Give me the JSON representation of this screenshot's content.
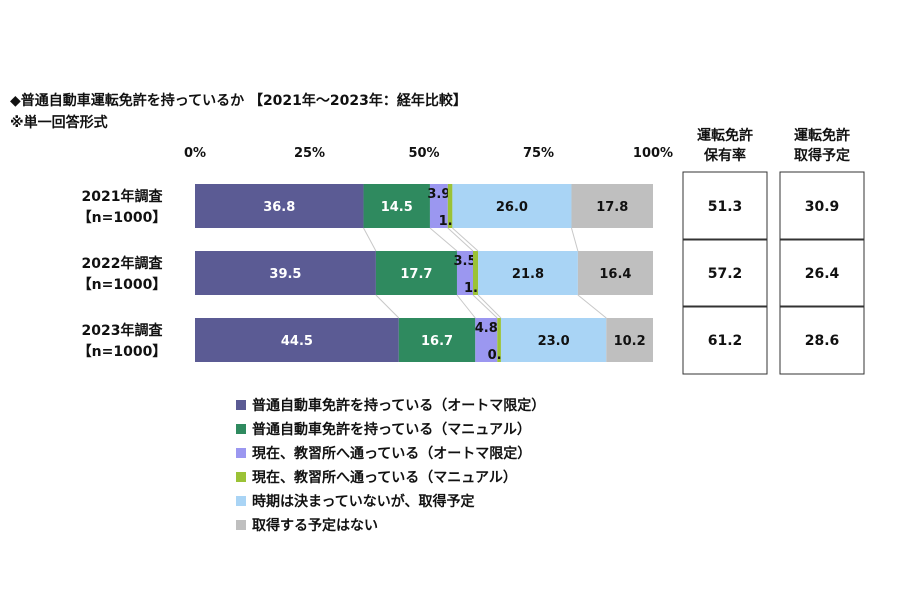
{
  "chart_data": {
    "type": "bar",
    "orientation": "horizontal",
    "stacked": true,
    "title": "◆普通自動車運転免許を持っているか 【2021年～2023年：経年比較】",
    "subtitle": "※単一回答形式",
    "x_ticks": [
      "0%",
      "25%",
      "50%",
      "75%",
      "100%"
    ],
    "xlim": [
      0,
      100
    ],
    "categories": [
      [
        "2021年調査",
        "【n=1000】"
      ],
      [
        "2022年調査",
        "【n=1000】"
      ],
      [
        "2023年調査",
        "【n=1000】"
      ]
    ],
    "series": [
      {
        "name": "普通自動車免許を持っている（オートマ限定）",
        "color": "#5b5b94",
        "values": [
          36.8,
          39.5,
          44.5
        ]
      },
      {
        "name": "普通自動車免許を持っている（マニュアル）",
        "color": "#2f8a5f",
        "values": [
          14.5,
          17.7,
          16.7
        ]
      },
      {
        "name": "現在、教習所へ通っている（オートマ限定）",
        "color": "#9b97f0",
        "values": [
          3.9,
          3.5,
          4.8
        ]
      },
      {
        "name": "現在、教習所へ通っている（マニュアル）",
        "color": "#9bc236",
        "values": [
          1.0,
          1.1,
          0.8
        ]
      },
      {
        "name": "時期は決まっていないが、取得予定",
        "color": "#a9d4f5",
        "values": [
          26.0,
          21.8,
          23.0
        ]
      },
      {
        "name": "取得する予定はない",
        "color": "#bfbfbf",
        "values": [
          17.8,
          16.4,
          10.2
        ]
      }
    ],
    "side_table": {
      "headers": [
        [
          "運転免許",
          "保有率"
        ],
        [
          "運転免許",
          "取得予定"
        ]
      ],
      "rows": [
        [
          "51.3",
          "30.9"
        ],
        [
          "57.2",
          "26.4"
        ],
        [
          "61.2",
          "28.6"
        ]
      ]
    },
    "legend_position": "bottom"
  }
}
